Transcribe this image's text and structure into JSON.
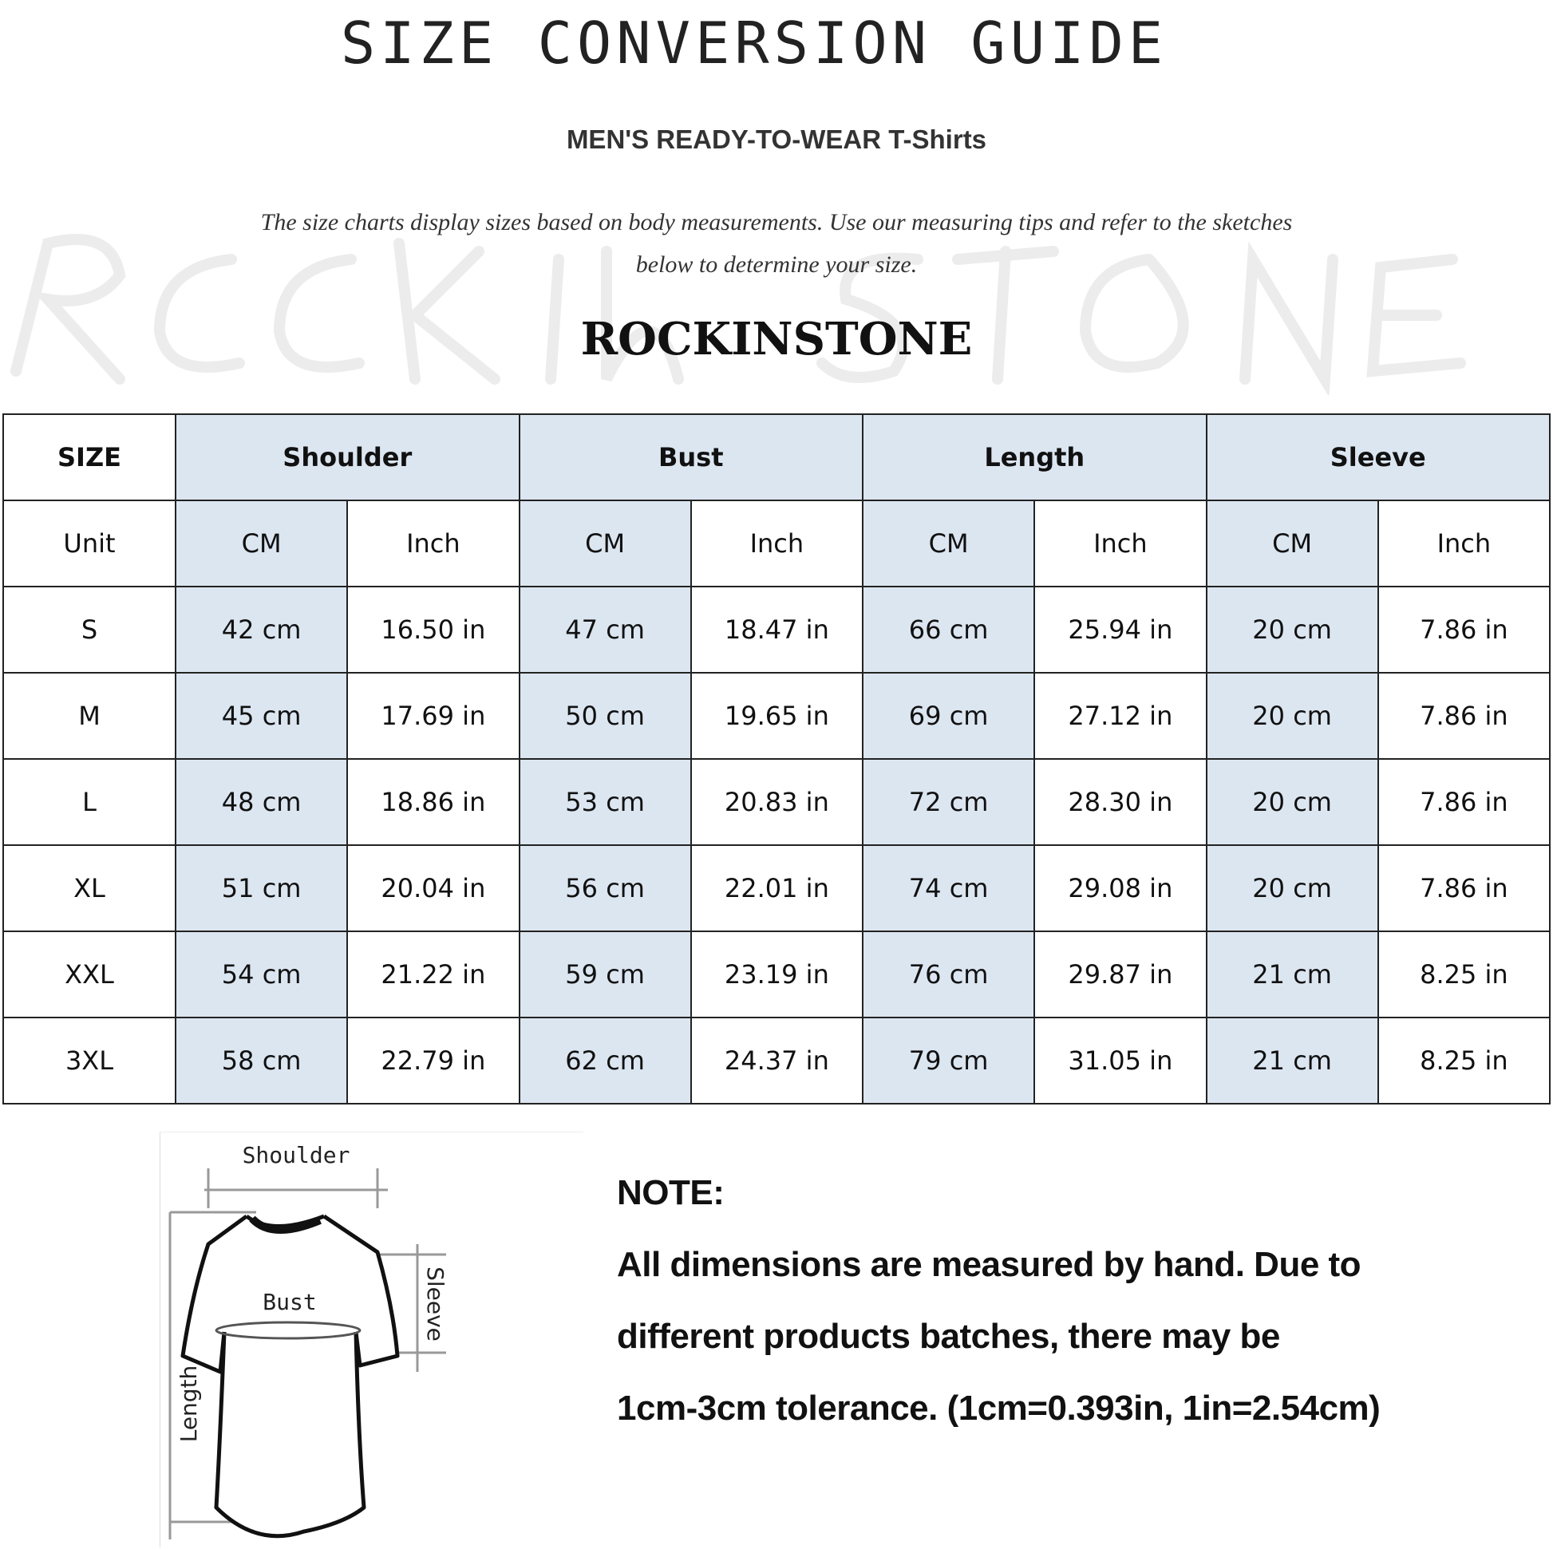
{
  "title": "SIZE CONVERSION GUIDE",
  "subtitle": "MEN'S READY-TO-WEAR T-Shirts",
  "description": "The size charts display sizes based on body measurements. Use our measuring tips and refer to the sketches below to determine your size.",
  "watermark": "ROCKINSTONE",
  "brand": "ROCKINSTONE",
  "table": {
    "size_header": "SIZE",
    "groups": [
      "Shoulder",
      "Bust",
      "Length",
      "Sleeve"
    ],
    "unit_label": "Unit",
    "units": [
      "CM",
      "Inch",
      "CM",
      "Inch",
      "CM",
      "Inch",
      "CM",
      "Inch"
    ],
    "rows": [
      {
        "size": "S",
        "values": [
          "42 cm",
          "16.50 in",
          "47 cm",
          "18.47 in",
          "66 cm",
          "25.94 in",
          "20 cm",
          "7.86 in"
        ]
      },
      {
        "size": "M",
        "values": [
          "45 cm",
          "17.69 in",
          "50 cm",
          "19.65 in",
          "69 cm",
          "27.12 in",
          "20 cm",
          "7.86 in"
        ]
      },
      {
        "size": "L",
        "values": [
          "48 cm",
          "18.86 in",
          "53 cm",
          "20.83 in",
          "72 cm",
          "28.30 in",
          "20 cm",
          "7.86 in"
        ]
      },
      {
        "size": "XL",
        "values": [
          "51 cm",
          "20.04 in",
          "56 cm",
          "22.01 in",
          "74 cm",
          "29.08 in",
          "20 cm",
          "7.86 in"
        ]
      },
      {
        "size": "XXL",
        "values": [
          "54 cm",
          "21.22 in",
          "59 cm",
          "23.19 in",
          "76 cm",
          "29.87 in",
          "21 cm",
          "8.25 in"
        ]
      },
      {
        "size": "3XL",
        "values": [
          "58 cm",
          "22.79 in",
          "62 cm",
          "24.37 in",
          "79 cm",
          "31.05 in",
          "21 cm",
          "8.25 in"
        ]
      }
    ],
    "header_color": "#dce6f1"
  },
  "sketch": {
    "shoulder": "Shoulder",
    "bust": "Bust",
    "length": "Length",
    "sleeve": "Sleeve"
  },
  "note": {
    "heading": "NOTE:",
    "lines": [
      "All dimensions are measured by hand. Due to",
      "different products batches, there may be",
      "1cm-3cm tolerance. (1cm=0.393in, 1in=2.54cm)"
    ]
  }
}
